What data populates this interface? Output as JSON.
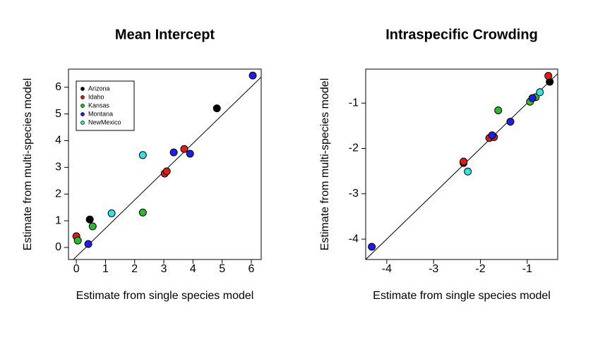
{
  "chart_data": [
    {
      "type": "scatter",
      "title": "Mean Intercept",
      "xlabel": "Estimate from single species model",
      "ylabel": "Estimate from multi-species model",
      "xlim": [
        -0.27,
        6.34
      ],
      "ylim": [
        -0.45,
        6.68
      ],
      "xticks": [
        0,
        1,
        2,
        3,
        4,
        5,
        6
      ],
      "yticks": [
        0,
        1,
        2,
        3,
        4,
        5,
        6
      ],
      "legend": "upper left",
      "ref_line": {
        "intercept": -0.34,
        "slope": 1.06
      },
      "series": [
        {
          "name": "Arizona",
          "color": "#000000",
          "x": [
            0.46,
            4.82
          ],
          "y": [
            1.05,
            5.21
          ]
        },
        {
          "name": "Idaho",
          "color": "#dd1c1c",
          "x": [
            0.0,
            3.03,
            3.1,
            3.7
          ],
          "y": [
            0.42,
            2.77,
            2.85,
            3.69
          ]
        },
        {
          "name": "Kansas",
          "color": "#2db82d",
          "x": [
            0.05,
            0.56,
            2.28
          ],
          "y": [
            0.26,
            0.79,
            1.31
          ]
        },
        {
          "name": "Montana",
          "color": "#1f1fe0",
          "x": [
            0.41,
            3.34,
            3.9,
            6.05
          ],
          "y": [
            0.13,
            3.56,
            3.51,
            6.44
          ]
        },
        {
          "name": "NewMexico",
          "color": "#33e0e6",
          "x": [
            1.21,
            2.28
          ],
          "y": [
            1.28,
            3.46
          ]
        }
      ]
    },
    {
      "type": "scatter",
      "title": "Intraspecific Crowding",
      "xlabel": "Estimate from single species model",
      "ylabel": "Estimate from multi-species model",
      "xlim": [
        -4.45,
        -0.35
      ],
      "ylim": [
        -4.45,
        -0.25
      ],
      "xticks": [
        -4,
        -3,
        -2,
        -1
      ],
      "yticks": [
        -4,
        -3,
        -2,
        -1
      ],
      "ref_line": {
        "intercept": 0,
        "slope": 1
      },
      "series": [
        {
          "color": "#000000",
          "x": [
            -0.52,
            -2.36
          ],
          "y": [
            -0.53,
            -2.32
          ]
        },
        {
          "color": "#dd1c1c",
          "x": [
            -0.55,
            -2.36,
            -1.81,
            -1.71
          ],
          "y": [
            -0.4,
            -2.29,
            -1.77,
            -1.75
          ]
        },
        {
          "color": "#2db82d",
          "x": [
            -1.62,
            -0.94,
            -0.82
          ],
          "y": [
            -1.16,
            -0.97,
            -0.87
          ]
        },
        {
          "color": "#1f1fe0",
          "x": [
            -4.32,
            -1.75,
            -1.36,
            -0.89
          ],
          "y": [
            -4.17,
            -1.71,
            -1.41,
            -0.89
          ]
        },
        {
          "color": "#33e0e6",
          "x": [
            -2.27,
            -0.73
          ],
          "y": [
            -2.51,
            -0.76
          ]
        }
      ]
    }
  ]
}
